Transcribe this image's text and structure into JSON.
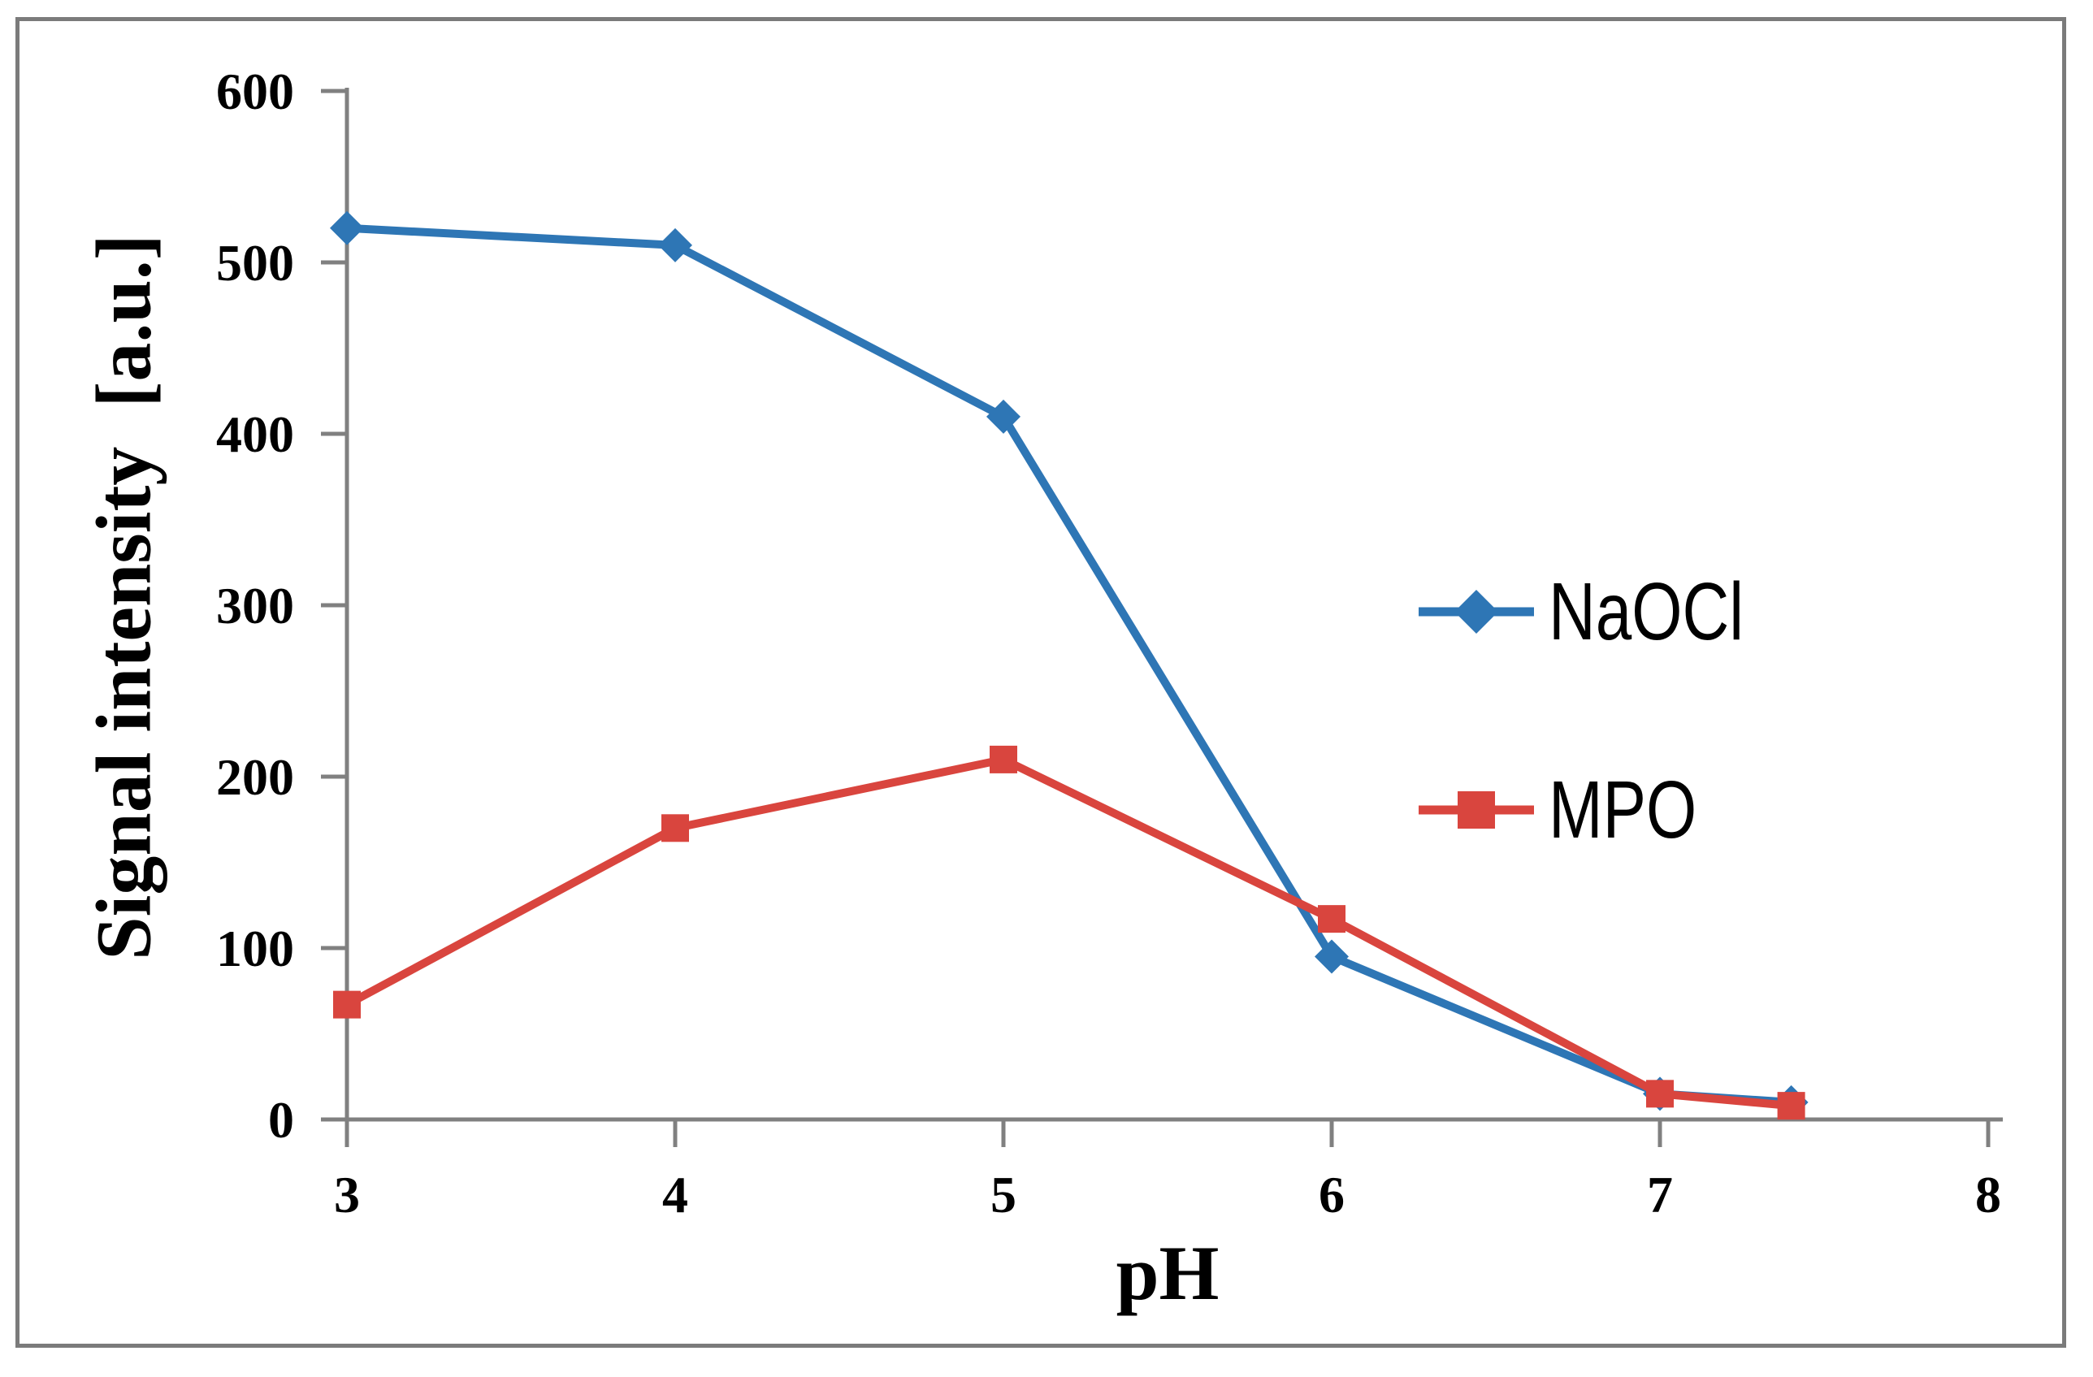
{
  "figure": {
    "y_axis_title": "Signal intensity  [a.u.]",
    "x_axis_title": "pH",
    "frame_color": "#7b7b7b",
    "background_color": "#ffffff"
  },
  "legend": {
    "position": "right-middle",
    "items": [
      {
        "label": "NaOCl",
        "marker": "diamond",
        "color": "#2e76b5"
      },
      {
        "label": "MPO",
        "marker": "square",
        "color": "#d9453e"
      }
    ]
  },
  "chart_data": {
    "type": "line",
    "title": "",
    "xlabel": "pH",
    "ylabel": "Signal intensity [a.u.]",
    "x": [
      3,
      4,
      5,
      6,
      7,
      7.4
    ],
    "series": [
      {
        "name": "NaOCl",
        "color": "#2e76b5",
        "marker": "diamond",
        "values": [
          520,
          510,
          410,
          95,
          15,
          10
        ]
      },
      {
        "name": "MPO",
        "color": "#d9453e",
        "marker": "square",
        "values": [
          67,
          170,
          210,
          117,
          15,
          8
        ]
      }
    ],
    "xlim": [
      3,
      8
    ],
    "ylim": [
      0,
      600
    ],
    "x_ticks": [
      3,
      4,
      5,
      6,
      7,
      8
    ],
    "y_ticks": [
      0,
      100,
      200,
      300,
      400,
      500,
      600
    ],
    "grid": false,
    "axis_color": "#808080",
    "text_color": "#000000",
    "legend_position": "right-middle"
  }
}
